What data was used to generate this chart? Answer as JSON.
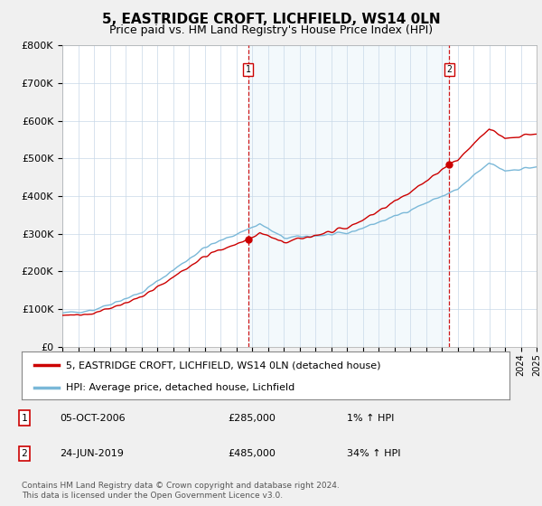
{
  "title": "5, EASTRIDGE CROFT, LICHFIELD, WS14 0LN",
  "subtitle": "Price paid vs. HM Land Registry's House Price Index (HPI)",
  "legend_line1": "5, EASTRIDGE CROFT, LICHFIELD, WS14 0LN (detached house)",
  "legend_line2": "HPI: Average price, detached house, Lichfield",
  "table_rows": [
    {
      "num": "1",
      "date": "05-OCT-2006",
      "price": "£285,000",
      "hpi": "1% ↑ HPI"
    },
    {
      "num": "2",
      "date": "24-JUN-2019",
      "price": "£485,000",
      "hpi": "34% ↑ HPI"
    }
  ],
  "footnote": "Contains HM Land Registry data © Crown copyright and database right 2024.\nThis data is licensed under the Open Government Licence v3.0.",
  "ylim": [
    0,
    800000
  ],
  "yticks": [
    0,
    100000,
    200000,
    300000,
    400000,
    500000,
    600000,
    700000,
    800000
  ],
  "ytick_labels": [
    "£0",
    "£100K",
    "£200K",
    "£300K",
    "£400K",
    "£500K",
    "£600K",
    "£700K",
    "£800K"
  ],
  "hpi_color": "#7ab8d8",
  "sale_color": "#cc0000",
  "vline_color": "#cc0000",
  "shade_color": "#ddeef7",
  "background_color": "#f0f0f0",
  "plot_bg_color": "#ffffff",
  "sale1_x": 2006.75,
  "sale1_y": 285000,
  "sale2_x": 2019.48,
  "sale2_y": 485000,
  "xmin": 1995,
  "xmax": 2025
}
